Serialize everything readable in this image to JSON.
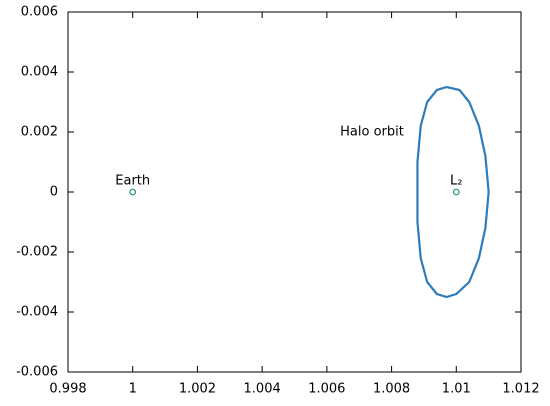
{
  "chart_data": {
    "type": "line",
    "xlim": [
      0.998,
      1.012
    ],
    "ylim": [
      -0.006,
      0.006
    ],
    "xticks": [
      0.998,
      1,
      1.002,
      1.004,
      1.006,
      1.008,
      1.01,
      1.012
    ],
    "yticks": [
      -0.006,
      -0.004,
      -0.002,
      0,
      0.002,
      0.004,
      0.006
    ],
    "series": [
      {
        "color": "#2f7cba",
        "x": [
          1.0097,
          1.0101,
          1.0104,
          1.0107,
          1.0109,
          1.011,
          1.0109,
          1.0107,
          1.0104,
          1.01,
          1.0097,
          1.0094,
          1.0091,
          1.0089,
          1.0088,
          1.0088,
          1.0088,
          1.0089,
          1.0091,
          1.0094,
          1.0097
        ],
        "values": [
          0.0035,
          0.0034,
          0.003,
          0.0022,
          0.0012,
          0,
          -0.0012,
          -0.0022,
          -0.003,
          -0.0034,
          -0.0035,
          -0.0034,
          -0.003,
          -0.0022,
          -0.001,
          0,
          0.001,
          0.0022,
          0.003,
          0.0034,
          0.0035
        ]
      }
    ],
    "points": [
      {
        "label": "Earth",
        "x": 1,
        "y": 0,
        "color": "#1a9e5c"
      },
      {
        "label": "L₂",
        "x": 1.01,
        "y": 0,
        "color": "#1a9e5c"
      }
    ],
    "annotations": [
      "Halo orbit"
    ]
  }
}
